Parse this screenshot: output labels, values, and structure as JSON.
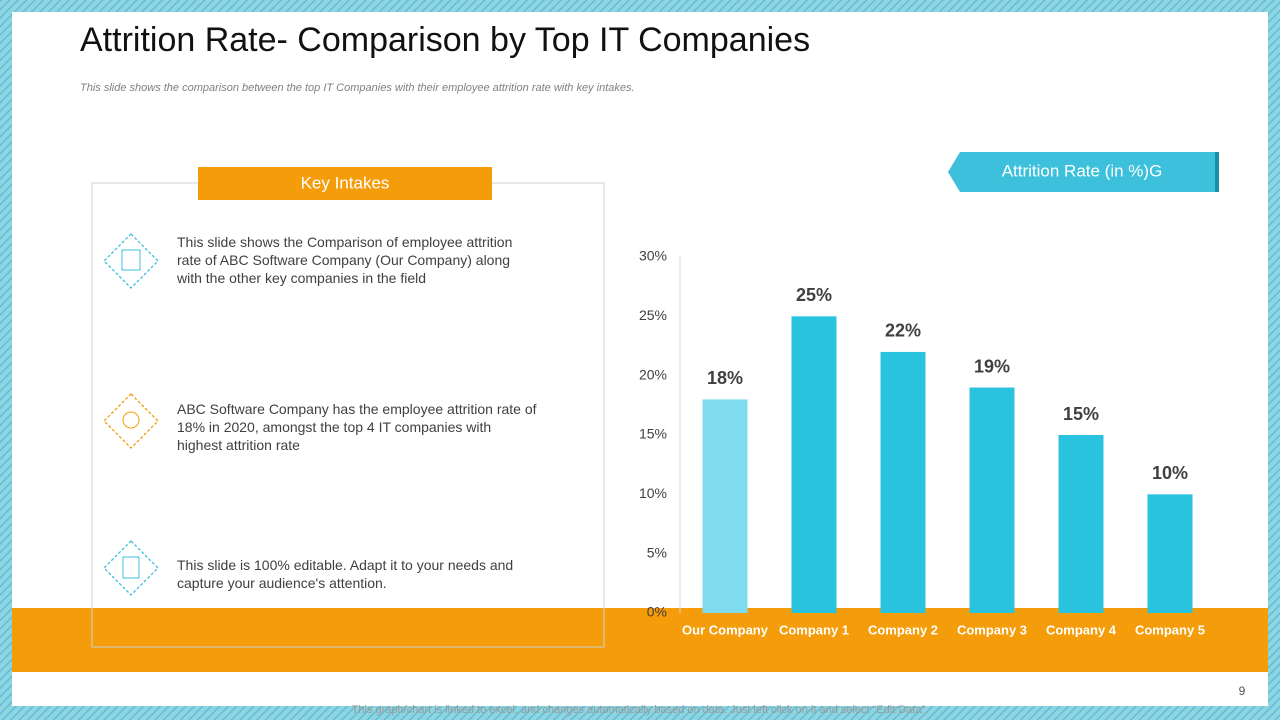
{
  "title": "Attrition Rate- Comparison by Top IT Companies",
  "subtitle": "This slide shows the comparison between the top IT Companies with their employee attrition rate with key intakes.",
  "key_intakes": {
    "heading": "Key Intakes",
    "items": [
      "This slide shows the Comparison of employee attrition rate of ABC Software Company (Our Company) along with the other key companies in the field",
      "ABC Software Company has the employee attrition rate of 18% in 2020, amongst the top 4 IT companies with highest attrition rate",
      "This slide is 100% editable. Adapt it to your needs and capture your audience's attention."
    ]
  },
  "footer": "This graph/chart is linked to excel, and changes automatically based on data. Just left click on it and select “Edit Data”.",
  "page_number": "9",
  "chart_data": {
    "type": "bar",
    "legend_label": "Attrition Rate (in %)G",
    "categories": [
      "Our Company",
      "Company 1",
      "Company 2",
      "Company 3",
      "Company 4",
      "Company 5"
    ],
    "values": [
      18,
      25,
      22,
      19,
      15,
      10
    ],
    "value_labels": [
      "18%",
      "25%",
      "22%",
      "19%",
      "15%",
      "10%"
    ],
    "colors": [
      "#7fdcef",
      "#29c3e0",
      "#29c3e0",
      "#29c3e0",
      "#29c3e0",
      "#29c3e0"
    ],
    "ylim": [
      0,
      30
    ],
    "yticks": [
      {
        "value": 0,
        "label": "0%"
      },
      {
        "value": 5,
        "label": "5%"
      },
      {
        "value": 10,
        "label": "10%"
      },
      {
        "value": 15,
        "label": "15%"
      },
      {
        "value": 20,
        "label": "20%"
      },
      {
        "value": 25,
        "label": "25%"
      },
      {
        "value": 30,
        "label": "30%"
      }
    ],
    "grid": false
  }
}
